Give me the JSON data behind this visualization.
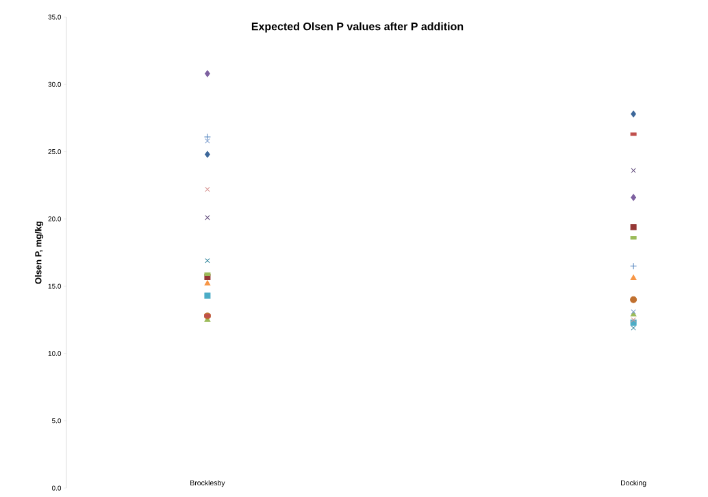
{
  "chart_data": {
    "type": "scatter",
    "title": "Expected Olsen P values after P addition",
    "ylabel": "Olsen P, mg/kg",
    "categories": [
      "Brocklesby",
      "Docking"
    ],
    "ylim": [
      0,
      35
    ],
    "yticks": [
      {
        "value": 0,
        "label": "0.0"
      },
      {
        "value": 5,
        "label": "5.0"
      },
      {
        "value": 10,
        "label": "10.0"
      },
      {
        "value": 15,
        "label": "15.0"
      },
      {
        "value": 20,
        "label": "20.0"
      },
      {
        "value": 25,
        "label": "25.0"
      },
      {
        "value": 30,
        "label": "30.0"
      },
      {
        "value": 35,
        "label": "35.0"
      }
    ],
    "grid": false,
    "series": [
      {
        "color": "#3c679a",
        "marker": "diamond",
        "values": [
          24.8,
          27.8
        ]
      },
      {
        "color": "#7d60a0",
        "marker": "diamond",
        "values": [
          30.8,
          21.6
        ]
      },
      {
        "color": "#953735",
        "marker": "square",
        "values": [
          15.7,
          19.4
        ]
      },
      {
        "color": "#4bacc6",
        "marker": "square",
        "values": [
          14.3,
          12.3
        ]
      },
      {
        "color": "#f79646",
        "marker": "triangle",
        "values": [
          15.2,
          15.6
        ]
      },
      {
        "color": "#9bbb59",
        "marker": "triangle",
        "values": [
          12.5,
          12.9
        ]
      },
      {
        "color": "#5f497a",
        "marker": "cross",
        "values": [
          20.1,
          23.6
        ]
      },
      {
        "color": "#7f9fcf",
        "marker": "cross",
        "values": [
          25.8,
          13.1
        ]
      },
      {
        "color": "#d99694",
        "marker": "cross",
        "values": [
          22.2,
          12.5
        ]
      },
      {
        "color": "#31859c",
        "marker": "cross",
        "values": [
          16.9,
          11.9
        ]
      },
      {
        "color": "#c0702f",
        "marker": "circle",
        "values": [
          12.8,
          14.0
        ]
      },
      {
        "color": "#4f81bd",
        "marker": "plus",
        "values": [
          26.1,
          16.5
        ]
      },
      {
        "color": "#c0504d",
        "marker": "square",
        "values": [
          12.8,
          26.3
        ]
      },
      {
        "color": "#9bbb59",
        "marker": "square",
        "values": [
          15.9,
          18.6
        ]
      }
    ]
  }
}
